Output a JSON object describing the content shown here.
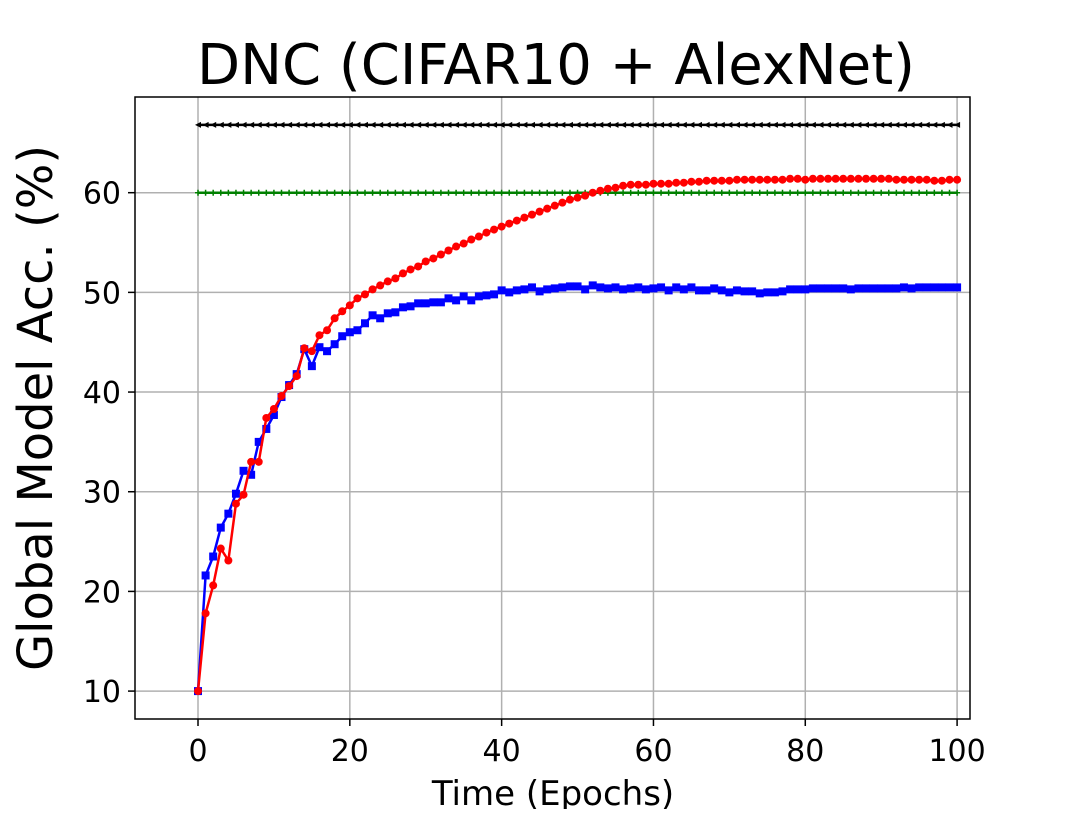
{
  "chart_data": {
    "type": "line",
    "title": "DNC (CIFAR10 + AlexNet)",
    "xlabel": "Time (Epochs)",
    "ylabel": "Global Model Acc. (%)",
    "xlim": [
      -8.3,
      101.7
    ],
    "ylim": [
      7.2,
      69.6
    ],
    "xticks": [
      0,
      20,
      40,
      60,
      80,
      100
    ],
    "yticks": [
      10,
      20,
      30,
      40,
      50,
      60
    ],
    "grid": true,
    "legend": "none",
    "series": [
      {
        "color": "#000000",
        "marker": "triangle-left",
        "x": [
          0,
          1,
          2,
          3,
          4,
          5,
          6,
          7,
          8,
          9,
          10,
          11,
          12,
          13,
          14,
          15,
          16,
          17,
          18,
          19,
          20,
          21,
          22,
          23,
          24,
          25,
          26,
          27,
          28,
          29,
          30,
          31,
          32,
          33,
          34,
          35,
          36,
          37,
          38,
          39,
          40,
          41,
          42,
          43,
          44,
          45,
          46,
          47,
          48,
          49,
          50,
          51,
          52,
          53,
          54,
          55,
          56,
          57,
          58,
          59,
          60,
          61,
          62,
          63,
          64,
          65,
          66,
          67,
          68,
          69,
          70,
          71,
          72,
          73,
          74,
          75,
          76,
          77,
          78,
          79,
          80,
          81,
          82,
          83,
          84,
          85,
          86,
          87,
          88,
          89,
          90,
          91,
          92,
          93,
          94,
          95,
          96,
          97,
          98,
          99,
          100
        ],
        "y": [
          66.8,
          66.8,
          66.8,
          66.8,
          66.8,
          66.8,
          66.8,
          66.8,
          66.8,
          66.8,
          66.8,
          66.8,
          66.8,
          66.8,
          66.8,
          66.8,
          66.8,
          66.8,
          66.8,
          66.8,
          66.8,
          66.8,
          66.8,
          66.8,
          66.8,
          66.8,
          66.8,
          66.8,
          66.8,
          66.8,
          66.8,
          66.8,
          66.8,
          66.8,
          66.8,
          66.8,
          66.8,
          66.8,
          66.8,
          66.8,
          66.8,
          66.8,
          66.8,
          66.8,
          66.8,
          66.8,
          66.8,
          66.8,
          66.8,
          66.8,
          66.8,
          66.8,
          66.8,
          66.8,
          66.8,
          66.8,
          66.8,
          66.8,
          66.8,
          66.8,
          66.8,
          66.8,
          66.8,
          66.8,
          66.8,
          66.8,
          66.8,
          66.8,
          66.8,
          66.8,
          66.8,
          66.8,
          66.8,
          66.8,
          66.8,
          66.8,
          66.8,
          66.8,
          66.8,
          66.8,
          66.8,
          66.8,
          66.8,
          66.8,
          66.8,
          66.8,
          66.8,
          66.8,
          66.8,
          66.8,
          66.8,
          66.8,
          66.8,
          66.8,
          66.8,
          66.8,
          66.8,
          66.8,
          66.8,
          66.8,
          66.8
        ]
      },
      {
        "color": "#008000",
        "marker": "plus",
        "x": [
          0,
          1,
          2,
          3,
          4,
          5,
          6,
          7,
          8,
          9,
          10,
          11,
          12,
          13,
          14,
          15,
          16,
          17,
          18,
          19,
          20,
          21,
          22,
          23,
          24,
          25,
          26,
          27,
          28,
          29,
          30,
          31,
          32,
          33,
          34,
          35,
          36,
          37,
          38,
          39,
          40,
          41,
          42,
          43,
          44,
          45,
          46,
          47,
          48,
          49,
          50,
          51,
          52,
          53,
          54,
          55,
          56,
          57,
          58,
          59,
          60,
          61,
          62,
          63,
          64,
          65,
          66,
          67,
          68,
          69,
          70,
          71,
          72,
          73,
          74,
          75,
          76,
          77,
          78,
          79,
          80,
          81,
          82,
          83,
          84,
          85,
          86,
          87,
          88,
          89,
          90,
          91,
          92,
          93,
          94,
          95,
          96,
          97,
          98,
          99,
          100
        ],
        "y": [
          60,
          60,
          60,
          60,
          60,
          60,
          60,
          60,
          60,
          60,
          60,
          60,
          60,
          60,
          60,
          60,
          60,
          60,
          60,
          60,
          60,
          60,
          60,
          60,
          60,
          60,
          60,
          60,
          60,
          60,
          60,
          60,
          60,
          60,
          60,
          60,
          60,
          60,
          60,
          60,
          60,
          60,
          60,
          60,
          60,
          60,
          60,
          60,
          60,
          60,
          60,
          60,
          60,
          60,
          60,
          60,
          60,
          60,
          60,
          60,
          60,
          60,
          60,
          60,
          60,
          60,
          60,
          60,
          60,
          60,
          60,
          60,
          60,
          60,
          60,
          60,
          60,
          60,
          60,
          60,
          60,
          60,
          60,
          60,
          60,
          60,
          60,
          60,
          60,
          60,
          60,
          60,
          60,
          60,
          60,
          60,
          60,
          60,
          60,
          60,
          60
        ]
      },
      {
        "color": "#0000ff",
        "marker": "square",
        "x": [
          0,
          1,
          2,
          3,
          4,
          5,
          6,
          7,
          8,
          9,
          10,
          11,
          12,
          13,
          14,
          15,
          16,
          17,
          18,
          19,
          20,
          21,
          22,
          23,
          24,
          25,
          26,
          27,
          28,
          29,
          30,
          31,
          32,
          33,
          34,
          35,
          36,
          37,
          38,
          39,
          40,
          41,
          42,
          43,
          44,
          45,
          46,
          47,
          48,
          49,
          50,
          51,
          52,
          53,
          54,
          55,
          56,
          57,
          58,
          59,
          60,
          61,
          62,
          63,
          64,
          65,
          66,
          67,
          68,
          69,
          70,
          71,
          72,
          73,
          74,
          75,
          76,
          77,
          78,
          79,
          80,
          81,
          82,
          83,
          84,
          85,
          86,
          87,
          88,
          89,
          90,
          91,
          92,
          93,
          94,
          95,
          96,
          97,
          98,
          99,
          100
        ],
        "y": [
          10.0,
          21.6,
          23.5,
          26.4,
          27.8,
          29.8,
          32.1,
          31.7,
          35.0,
          36.3,
          37.7,
          39.5,
          40.7,
          41.8,
          44.3,
          42.6,
          44.5,
          44.1,
          44.8,
          45.6,
          46.0,
          46.2,
          46.9,
          47.7,
          47.4,
          47.9,
          48.0,
          48.5,
          48.6,
          48.9,
          48.9,
          49.0,
          49.0,
          49.4,
          49.2,
          49.6,
          49.2,
          49.6,
          49.7,
          49.8,
          50.2,
          50.0,
          50.2,
          50.3,
          50.5,
          50.1,
          50.3,
          50.4,
          50.5,
          50.6,
          50.6,
          50.3,
          50.7,
          50.5,
          50.4,
          50.5,
          50.3,
          50.4,
          50.5,
          50.3,
          50.4,
          50.5,
          50.2,
          50.5,
          50.3,
          50.5,
          50.2,
          50.2,
          50.4,
          50.2,
          50.0,
          50.2,
          50.1,
          50.1,
          49.9,
          50.0,
          50.0,
          50.1,
          50.3,
          50.3,
          50.3,
          50.4,
          50.4,
          50.4,
          50.4,
          50.4,
          50.3,
          50.4,
          50.4,
          50.4,
          50.4,
          50.4,
          50.4,
          50.5,
          50.4,
          50.5,
          50.5,
          50.5,
          50.5,
          50.5,
          50.5
        ]
      },
      {
        "color": "#ff0000",
        "marker": "circle",
        "x": [
          0,
          1,
          2,
          3,
          4,
          5,
          6,
          7,
          8,
          9,
          10,
          11,
          12,
          13,
          14,
          15,
          16,
          17,
          18,
          19,
          20,
          21,
          22,
          23,
          24,
          25,
          26,
          27,
          28,
          29,
          30,
          31,
          32,
          33,
          34,
          35,
          36,
          37,
          38,
          39,
          40,
          41,
          42,
          43,
          44,
          45,
          46,
          47,
          48,
          49,
          50,
          51,
          52,
          53,
          54,
          55,
          56,
          57,
          58,
          59,
          60,
          61,
          62,
          63,
          64,
          65,
          66,
          67,
          68,
          69,
          70,
          71,
          72,
          73,
          74,
          75,
          76,
          77,
          78,
          79,
          80,
          81,
          82,
          83,
          84,
          85,
          86,
          87,
          88,
          89,
          90,
          91,
          92,
          93,
          94,
          95,
          96,
          97,
          98,
          99,
          100
        ],
        "y": [
          10.0,
          17.8,
          20.6,
          24.3,
          23.1,
          28.8,
          29.7,
          33.0,
          33.0,
          37.4,
          38.3,
          39.6,
          40.6,
          41.6,
          44.4,
          44.1,
          45.7,
          46.2,
          47.4,
          48.1,
          48.7,
          49.4,
          49.8,
          50.3,
          50.7,
          51.1,
          51.4,
          51.9,
          52.3,
          52.6,
          53.1,
          53.4,
          53.8,
          54.2,
          54.6,
          54.9,
          55.3,
          55.6,
          56.0,
          56.3,
          56.6,
          56.9,
          57.2,
          57.5,
          57.8,
          58.1,
          58.4,
          58.7,
          59.0,
          59.3,
          59.5,
          59.7,
          60.0,
          60.2,
          60.4,
          60.5,
          60.7,
          60.8,
          60.8,
          60.8,
          60.9,
          60.9,
          60.9,
          61.0,
          61.0,
          61.1,
          61.1,
          61.2,
          61.2,
          61.2,
          61.2,
          61.3,
          61.3,
          61.3,
          61.3,
          61.3,
          61.3,
          61.3,
          61.4,
          61.4,
          61.3,
          61.4,
          61.4,
          61.4,
          61.4,
          61.4,
          61.4,
          61.4,
          61.4,
          61.4,
          61.4,
          61.4,
          61.3,
          61.3,
          61.3,
          61.3,
          61.3,
          61.2,
          61.2,
          61.3,
          61.3
        ]
      }
    ]
  }
}
